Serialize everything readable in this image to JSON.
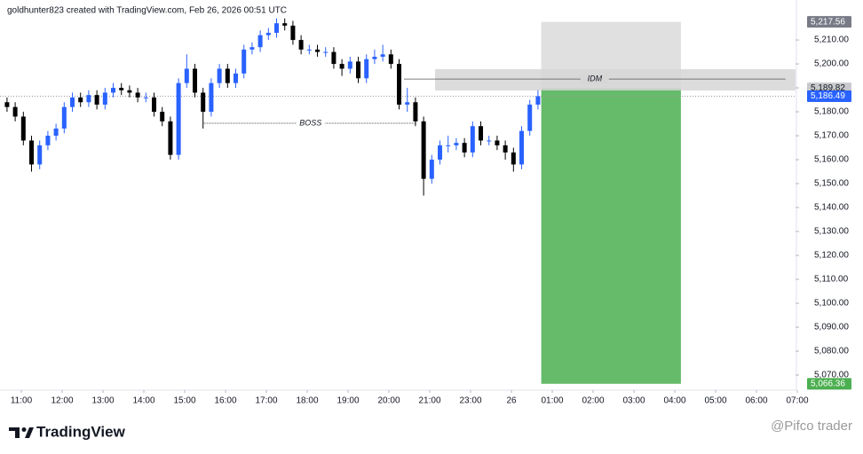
{
  "chart_data": {
    "type": "candlestick",
    "title": "goldhunter823 created with TradingView.com, Feb 26, 2026 00:51 UTC",
    "brand": "TradingView",
    "watermark": "@Pifco trader",
    "up_color": "#2962ff",
    "down_color": "#000000",
    "open": [
      5184,
      5182,
      5178,
      5168,
      5158,
      5166,
      5170,
      5173,
      5182,
      5186,
      5184,
      5187,
      5183,
      5188,
      5190,
      5189,
      5188,
      5186,
      5186,
      5180,
      5176,
      5162,
      5192,
      5198,
      5188,
      5180,
      5192,
      5198,
      5192,
      5196,
      5206,
      5207,
      5212,
      5213,
      5217,
      5216,
      5210,
      5206,
      5206,
      5205,
      5205,
      5200,
      5198,
      5201,
      5194,
      5202,
      5203,
      5204,
      5200,
      5183,
      5184,
      5176,
      5152,
      5160,
      5166,
      5166,
      5167,
      5163,
      5174,
      5168,
      5168,
      5166,
      5163,
      5158,
      5172,
      5183
    ],
    "high": [
      5186,
      5184,
      5180,
      5170,
      5168,
      5172,
      5175,
      5184,
      5188,
      5188,
      5189,
      5189,
      5190,
      5192,
      5192,
      5191,
      5190,
      5188,
      5188,
      5182,
      5178,
      5194,
      5204,
      5200,
      5190,
      5194,
      5200,
      5200,
      5198,
      5208,
      5209,
      5214,
      5215,
      5219,
      5219,
      5218,
      5212,
      5208,
      5208,
      5207,
      5207,
      5202,
      5203,
      5203,
      5204,
      5206,
      5208,
      5206,
      5202,
      5190,
      5186,
      5178,
      5162,
      5168,
      5170,
      5169,
      5169,
      5176,
      5176,
      5170,
      5170,
      5168,
      5165,
      5174,
      5185,
      5189
    ],
    "low": [
      5180,
      5176,
      5166,
      5155,
      5156,
      5164,
      5168,
      5171,
      5180,
      5182,
      5182,
      5181,
      5181,
      5186,
      5187,
      5186,
      5184,
      5184,
      5178,
      5174,
      5160,
      5160,
      5190,
      5186,
      5173,
      5178,
      5190,
      5190,
      5190,
      5194,
      5204,
      5205,
      5210,
      5211,
      5214,
      5208,
      5204,
      5204,
      5203,
      5203,
      5198,
      5195,
      5196,
      5192,
      5192,
      5200,
      5201,
      5198,
      5181,
      5180,
      5174,
      5145,
      5150,
      5158,
      5163,
      5164,
      5161,
      5161,
      5166,
      5166,
      5164,
      5160,
      5155,
      5156,
      5170,
      5181
    ],
    "close": [
      5182,
      5178,
      5168,
      5158,
      5166,
      5170,
      5173,
      5182,
      5186,
      5184,
      5187,
      5183,
      5188,
      5190,
      5189,
      5188,
      5186,
      5186,
      5180,
      5176,
      5162,
      5192,
      5198,
      5188,
      5180,
      5192,
      5198,
      5192,
      5196,
      5206,
      5207,
      5212,
      5213,
      5217,
      5216,
      5210,
      5206,
      5206,
      5205,
      5205,
      5200,
      5198,
      5201,
      5194,
      5202,
      5203,
      5204,
      5200,
      5183,
      5184,
      5176,
      5152,
      5160,
      5166,
      5166,
      5167,
      5163,
      5174,
      5168,
      5168,
      5166,
      5163,
      5158,
      5172,
      5183,
      5186.49
    ],
    "xlim": [
      -0.86,
      96.53
    ],
    "xticks": [
      {
        "value": 1.75,
        "label": "11:00"
      },
      {
        "value": 6.75,
        "label": "12:00"
      },
      {
        "value": 11.75,
        "label": "13:00"
      },
      {
        "value": 16.75,
        "label": "14:00"
      },
      {
        "value": 21.75,
        "label": "15:00"
      },
      {
        "value": 26.75,
        "label": "16:00"
      },
      {
        "value": 31.75,
        "label": "17:00"
      },
      {
        "value": 36.75,
        "label": "18:00"
      },
      {
        "value": 41.75,
        "label": "19:00"
      },
      {
        "value": 46.75,
        "label": "20:00"
      },
      {
        "value": 51.75,
        "label": "21:00"
      },
      {
        "value": 56.75,
        "label": "23:00"
      },
      {
        "value": 61.75,
        "label": "26"
      },
      {
        "value": 66.75,
        "label": "01:00"
      },
      {
        "value": 71.75,
        "label": "02:00"
      },
      {
        "value": 76.75,
        "label": "03:00"
      },
      {
        "value": 81.75,
        "label": "04:00"
      },
      {
        "value": 86.75,
        "label": "05:00"
      },
      {
        "value": 91.75,
        "label": "06:00"
      },
      {
        "value": 96.75,
        "label": "07:00"
      }
    ],
    "ylim": [
      5063.7,
      5223
    ],
    "yticks": [
      {
        "value": 5070,
        "label": "5,070.00"
      },
      {
        "value": 5080,
        "label": "5,080.00"
      },
      {
        "value": 5090,
        "label": "5,090.00"
      },
      {
        "value": 5100,
        "label": "5,100.00"
      },
      {
        "value": 5110,
        "label": "5,110.00"
      },
      {
        "value": 5120,
        "label": "5,120.00"
      },
      {
        "value": 5130,
        "label": "5,130.00"
      },
      {
        "value": 5140,
        "label": "5,140.00"
      },
      {
        "value": 5150,
        "label": "5,150.00"
      },
      {
        "value": 5160,
        "label": "5,160.00"
      },
      {
        "value": 5170,
        "label": "5,170.00"
      },
      {
        "value": 5180,
        "label": "5,180.00"
      },
      {
        "value": 5190,
        "label": "5,190.00"
      },
      {
        "value": 5200,
        "label": "5,200.00"
      },
      {
        "value": 5210,
        "label": "5,210.00"
      }
    ],
    "grid": false,
    "last_price": 5186.49,
    "price_labels": [
      {
        "value": 5217.56,
        "label": "5,217.56",
        "color": "#787b86",
        "text_color": "#ffffff"
      },
      {
        "value": 5189.82,
        "label": "5,189.82",
        "color": "#c8c9cc",
        "text_color": "#131722"
      },
      {
        "value": 5186.49,
        "label": "5,186.49",
        "color": "#2962ff",
        "text_color": "#ffffff"
      },
      {
        "value": 5066.36,
        "label": "5,066.36",
        "color": "#4caf50",
        "text_color": "#ffffff"
      }
    ],
    "position": {
      "x": [
        65.4,
        82.5
      ],
      "stop": 5217.56,
      "entry": 5189.82,
      "target": 5066.36,
      "stop_color": "#e0e0e0",
      "target_color": "#66bb6a"
    },
    "zone": {
      "x": [
        52.4,
        96.53
      ],
      "top": 5197.8,
      "bottom": 5188.9,
      "color": "#d6d6d6"
    },
    "annotations": [
      {
        "text": "IDM",
        "x": [
          48.6,
          95.3
        ],
        "value": 5193.7
      },
      {
        "text": "BOSS",
        "x": [
          24.1,
          50.2
        ],
        "value": 5175.2
      }
    ]
  }
}
